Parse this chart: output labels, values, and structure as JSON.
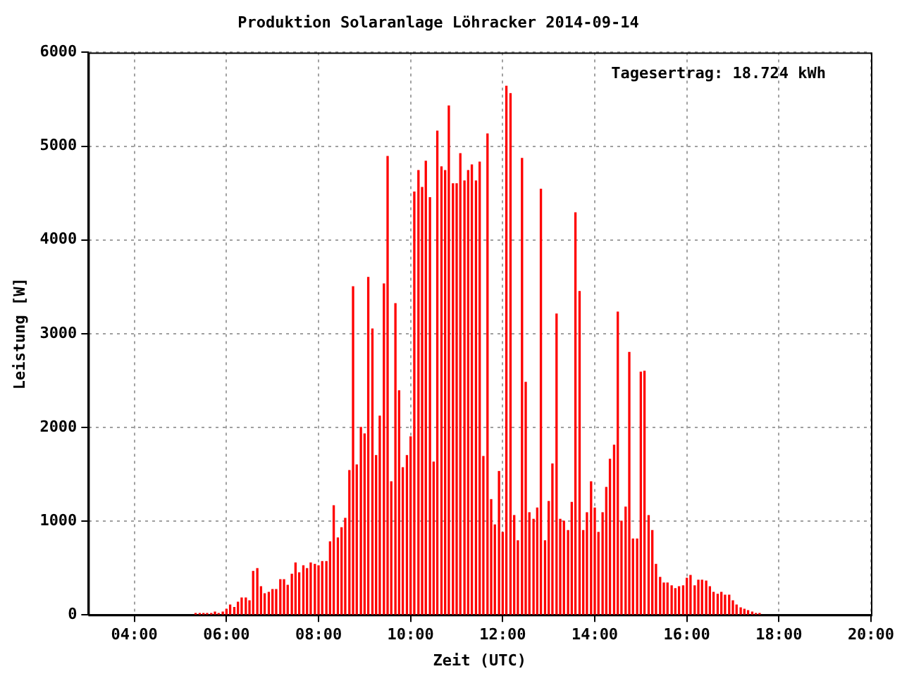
{
  "chart_data": {
    "type": "bar",
    "title": "Produktion Solaranlage Löhracker 2014-09-14",
    "xlabel": "Zeit (UTC)",
    "ylabel": "Leistung [W]",
    "annotations": [
      "Tagesertrag: 18.724 kWh"
    ],
    "x": [
      5.33,
      5.42,
      5.5,
      5.58,
      5.67,
      5.75,
      5.83,
      5.92,
      6,
      6.08,
      6.17,
      6.25,
      6.33,
      6.42,
      6.5,
      6.58,
      6.67,
      6.75,
      6.83,
      6.92,
      7,
      7.08,
      7.17,
      7.25,
      7.33,
      7.42,
      7.5,
      7.58,
      7.67,
      7.75,
      7.83,
      7.92,
      8,
      8.08,
      8.17,
      8.25,
      8.33,
      8.42,
      8.5,
      8.58,
      8.67,
      8.75,
      8.83,
      8.92,
      9,
      9.08,
      9.17,
      9.25,
      9.33,
      9.42,
      9.5,
      9.58,
      9.67,
      9.75,
      9.83,
      9.92,
      10,
      10.08,
      10.17,
      10.25,
      10.33,
      10.42,
      10.5,
      10.58,
      10.67,
      10.75,
      10.83,
      10.92,
      11,
      11.08,
      11.17,
      11.25,
      11.33,
      11.42,
      11.5,
      11.58,
      11.67,
      11.75,
      11.83,
      11.92,
      12,
      12.08,
      12.17,
      12.25,
      12.33,
      12.42,
      12.5,
      12.58,
      12.67,
      12.75,
      12.83,
      12.92,
      13,
      13.08,
      13.17,
      13.25,
      13.33,
      13.42,
      13.5,
      13.58,
      13.67,
      13.75,
      13.83,
      13.92,
      14,
      14.08,
      14.17,
      14.25,
      14.33,
      14.42,
      14.5,
      14.58,
      14.67,
      14.75,
      14.83,
      14.92,
      15,
      15.08,
      15.17,
      15.25,
      15.33,
      15.42,
      15.5,
      15.58,
      15.67,
      15.75,
      15.83,
      15.92,
      16,
      16.08,
      16.17,
      16.25,
      16.33,
      16.42,
      16.5,
      16.58,
      16.67,
      16.75,
      16.83,
      16.92,
      17,
      17.08,
      17.17,
      17.25,
      17.33,
      17.42,
      17.5,
      17.58
    ],
    "series": [
      {
        "color": "#ff0000",
        "values": [
          15,
          15,
          15,
          15,
          15,
          30,
          15,
          30,
          60,
          105,
          80,
          135,
          180,
          180,
          150,
          465,
          495,
          300,
          225,
          240,
          270,
          270,
          375,
          375,
          315,
          435,
          555,
          450,
          525,
          495,
          555,
          540,
          525,
          570,
          570,
          780,
          1165,
          820,
          930,
          1030,
          1540,
          3500,
          1600,
          2000,
          1930,
          3600,
          3050,
          1700,
          2120,
          3530,
          4890,
          1420,
          3320,
          2390,
          1570,
          1700,
          1900,
          4510,
          4740,
          4560,
          4840,
          4450,
          1630,
          5160,
          4780,
          4740,
          5430,
          4600,
          4600,
          4920,
          4630,
          4740,
          4800,
          4630,
          4830,
          1690,
          5130,
          1230,
          960,
          1530,
          880,
          5640,
          5560,
          1060,
          790,
          4870,
          2480,
          1090,
          1020,
          1140,
          4540,
          790,
          1210,
          1610,
          3210,
          1020,
          1000,
          900,
          1200,
          4290,
          3450,
          900,
          1090,
          1420,
          1140,
          880,
          1090,
          1360,
          1660,
          1810,
          3230,
          1000,
          1150,
          2800,
          810,
          810,
          2590,
          2600,
          1060,
          900,
          540,
          400,
          340,
          340,
          310,
          280,
          300,
          310,
          390,
          420,
          310,
          370,
          370,
          360,
          300,
          240,
          220,
          240,
          210,
          210,
          150,
          105,
          75,
          60,
          45,
          30,
          15,
          15
        ]
      }
    ],
    "xlim": [
      3,
      20
    ],
    "xticks": [
      {
        "value": 4,
        "label": "04:00"
      },
      {
        "value": 6,
        "label": "06:00"
      },
      {
        "value": 8,
        "label": "08:00"
      },
      {
        "value": 10,
        "label": "10:00"
      },
      {
        "value": 12,
        "label": "12:00"
      },
      {
        "value": 14,
        "label": "14:00"
      },
      {
        "value": 16,
        "label": "16:00"
      },
      {
        "value": 18,
        "label": "18:00"
      },
      {
        "value": 20,
        "label": "20:00"
      }
    ],
    "ylim": [
      0,
      6000
    ],
    "yticks": [
      0,
      1000,
      2000,
      3000,
      4000,
      5000,
      6000
    ],
    "grid": true,
    "legend": false
  }
}
